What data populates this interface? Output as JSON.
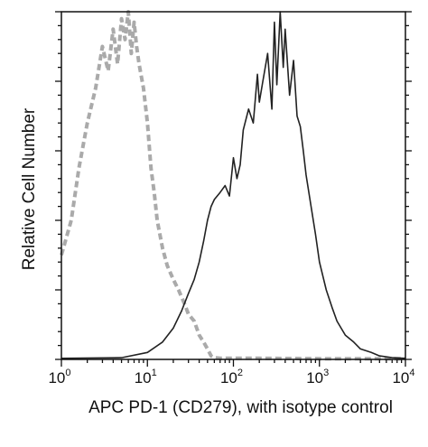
{
  "chart_data": {
    "type": "line",
    "title": "",
    "xlabel": "APC PD-1 (CD279), with isotype control",
    "ylabel": "Relative Cell Number",
    "xscale": "log",
    "xlim": [
      1,
      10000
    ],
    "ylim": [
      0,
      100
    ],
    "xticks": [
      {
        "base": "10",
        "exp": "0"
      },
      {
        "base": "10",
        "exp": "1"
      },
      {
        "base": "10",
        "exp": "2"
      },
      {
        "base": "10",
        "exp": "3"
      },
      {
        "base": "10",
        "exp": "4"
      }
    ],
    "grid": false,
    "legend": "none",
    "series": [
      {
        "style": "dashed",
        "color": "#aaaaaa",
        "x": [
          1.0,
          1.3,
          1.6,
          2.0,
          2.5,
          3.0,
          3.5,
          4.0,
          4.5,
          5.0,
          5.5,
          6.0,
          6.5,
          7.0,
          7.5,
          8.0,
          9.0,
          10.0,
          11.0,
          12.0,
          13.0,
          15.0,
          17.0,
          20.0,
          23.0,
          27.0,
          30.0,
          35.0,
          40.0,
          45.0,
          50.0,
          55.0,
          60.0,
          70.0,
          100.0,
          200.0,
          1000.0,
          10000.0
        ],
        "y": [
          30,
          40,
          55,
          68,
          78,
          90,
          83,
          95,
          85,
          98,
          92,
          100,
          88,
          97,
          90,
          85,
          78,
          68,
          55,
          48,
          40,
          32,
          27,
          23,
          20,
          16,
          13,
          11,
          7,
          5,
          3,
          1,
          0.5,
          0.3,
          0.3,
          0.3,
          0.2,
          0.2
        ]
      },
      {
        "style": "solid",
        "color": "#222222",
        "x": [
          1.0,
          5.0,
          10.0,
          15.0,
          20.0,
          25.0,
          30.0,
          35.0,
          40.0,
          45.0,
          50.0,
          55.0,
          60.0,
          70.0,
          80.0,
          90.0,
          100.0,
          110.0,
          120.0,
          130.0,
          150.0,
          170.0,
          190.0,
          200.0,
          220.0,
          250.0,
          280.0,
          300.0,
          320.0,
          350.0,
          380.0,
          400.0,
          450.0,
          500.0,
          550.0,
          600.0,
          650.0,
          700.0,
          800.0,
          900.0,
          1000.0,
          1200.0,
          1400.0,
          1600.0,
          2000.0,
          2500.0,
          3000.0,
          4000.0,
          5000.0,
          7000.0,
          10000.0
        ],
        "y": [
          0.3,
          0.5,
          2,
          5,
          9,
          14,
          19,
          23,
          28,
          34,
          40,
          44,
          46,
          48,
          50,
          47,
          58,
          52,
          56,
          66,
          72,
          68,
          82,
          74,
          80,
          88,
          72,
          97,
          79,
          100,
          84,
          95,
          76,
          86,
          70,
          67,
          60,
          53,
          44,
          36,
          28,
          20,
          15,
          11,
          7,
          5,
          3,
          2,
          1,
          0.5,
          0.3
        ]
      }
    ]
  }
}
